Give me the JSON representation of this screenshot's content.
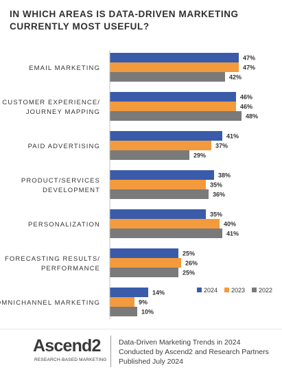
{
  "chart_data": {
    "type": "bar",
    "orientation": "horizontal",
    "title_lines": [
      "IN WHICH AREAS IS DATA-DRIVEN MARKETING",
      "CURRENTLY MOST USEFUL?"
    ],
    "categories": [
      [
        "EMAIL MARKETING"
      ],
      [
        "CUSTOMER EXPERIENCE/",
        "JOURNEY MAPPING"
      ],
      [
        "PAID ADVERTISING"
      ],
      [
        "PRODUCT/SERVICES",
        "DEVELOPMENT"
      ],
      [
        "PERSONALIZATION"
      ],
      [
        "FORECASTING RESULTS/",
        "PERFORMANCE"
      ],
      [
        "OMNICHANNEL MARKETING"
      ]
    ],
    "series": [
      {
        "name": "2024",
        "color": "#3a5ba9",
        "values": [
          47,
          46,
          41,
          38,
          35,
          25,
          14
        ]
      },
      {
        "name": "2023",
        "color": "#f39a3c",
        "values": [
          47,
          46,
          37,
          35,
          40,
          26,
          9
        ]
      },
      {
        "name": "2022",
        "color": "#7a7a7a",
        "values": [
          42,
          48,
          29,
          36,
          41,
          25,
          10
        ]
      }
    ],
    "value_suffix": "%",
    "xlim": [
      0,
      50
    ],
    "legend_position": "bottom-right",
    "grid": false
  },
  "footer": {
    "logo_text": "Ascend2",
    "logo_tagline": "RESEARCH-BASED MARKETING",
    "credit_lines": [
      "Data-Driven Marketing Trends in 2024",
      "Conducted by Ascend2 and Research Partners",
      "Published July 2024"
    ]
  }
}
